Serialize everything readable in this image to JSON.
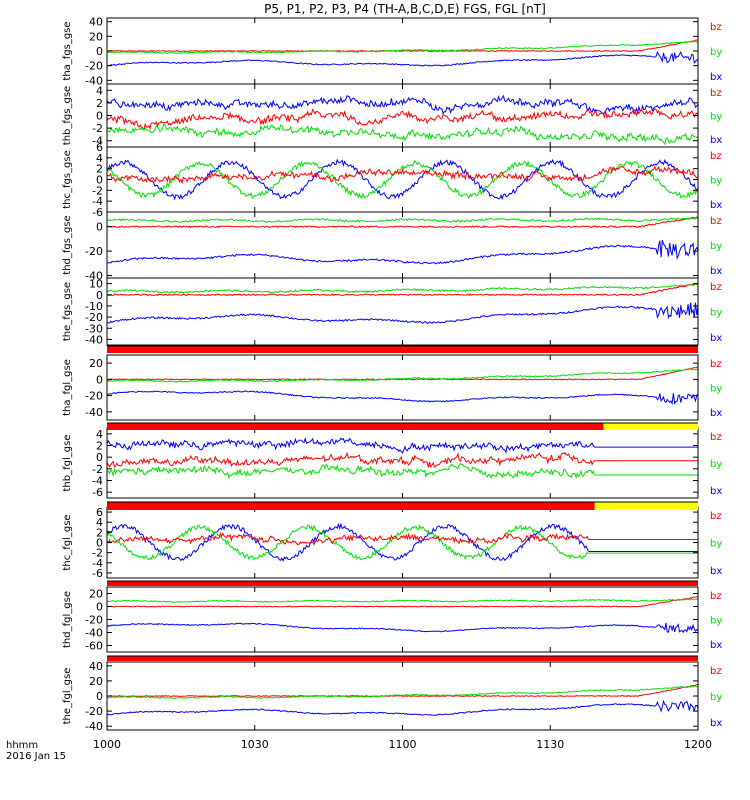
{
  "title": "P5, P1, P2, P3, P4 (TH-A,B,C,D,E) FGS, FGL [nT]",
  "time_label": "hhmm",
  "date_label": "2016 Jan 15",
  "colors": {
    "bx": "#0000ff",
    "by": "#00e000",
    "bz": "#ff0000",
    "bar_red": "#ff0000",
    "bar_yellow": "#ffff00",
    "axis": "#000000"
  },
  "chart_data": {
    "type": "line",
    "x_range": [
      "1000",
      "1200"
    ],
    "x_ticks": [
      "1000",
      "1030",
      "1100",
      "1130",
      "1200"
    ],
    "legend": [
      "bz",
      "by",
      "bx"
    ],
    "panels": [
      {
        "ylabel": "tha_fgs_gse",
        "ylim": [
          -45,
          45
        ],
        "yticks": [
          "40",
          "20",
          "0",
          "-20",
          "-40"
        ],
        "series": [
          {
            "name": "bz",
            "style": "flat",
            "level": 0,
            "end": 15
          },
          {
            "name": "by",
            "style": "rise",
            "level": -2,
            "end": 12
          },
          {
            "name": "bx",
            "style": "slow",
            "level": -20,
            "end": -10
          }
        ]
      },
      {
        "ylabel": "thb_fgs_gse",
        "ylim": [
          -5,
          5
        ],
        "yticks": [
          "4",
          "2",
          "0",
          "-2",
          "-4"
        ],
        "series": [
          {
            "name": "bx",
            "style": "busy",
            "level": 2.3,
            "end": 1
          },
          {
            "name": "bz",
            "style": "busy",
            "level": -1,
            "end": 0
          },
          {
            "name": "by",
            "style": "busy",
            "level": -2.5,
            "end": -3
          }
        ]
      },
      {
        "ylabel": "thc_fgs_gse",
        "ylim": [
          -6,
          6
        ],
        "yticks": [
          "6",
          "4",
          "2",
          "0",
          "-2",
          "-4",
          "-6"
        ],
        "series": [
          {
            "name": "bx",
            "style": "wave",
            "level": 0,
            "end": -2
          },
          {
            "name": "by",
            "style": "wave2",
            "level": 0,
            "end": 2
          },
          {
            "name": "bz",
            "style": "busy",
            "level": 0.5,
            "end": 1
          }
        ]
      },
      {
        "ylabel": "thd_fgs_gse",
        "ylim": [
          -42,
          12
        ],
        "yticks": [
          "0",
          "-20",
          "-40"
        ],
        "series": [
          {
            "name": "bz",
            "style": "flat",
            "level": 0,
            "end": 8
          },
          {
            "name": "by",
            "style": "rise",
            "level": 5,
            "end": 6
          },
          {
            "name": "bx",
            "style": "slow",
            "level": -30,
            "end": -20
          }
        ]
      },
      {
        "ylabel": "the_fgs_gse",
        "ylim": [
          -45,
          15
        ],
        "yticks": [
          "10",
          "0",
          "-10",
          "-20",
          "-30",
          "-40"
        ],
        "series": [
          {
            "name": "bz",
            "style": "flat",
            "level": 0,
            "end": 10
          },
          {
            "name": "by",
            "style": "rise",
            "level": 3,
            "end": 8
          },
          {
            "name": "bx",
            "style": "slow",
            "level": -25,
            "end": -15
          }
        ]
      },
      {
        "ylabel": "tha_fgl_gse",
        "ylim": [
          -50,
          30
        ],
        "yticks": [
          "20",
          "0",
          "-20",
          "-40"
        ],
        "series": [
          {
            "name": "bz",
            "style": "flat",
            "level": 0,
            "end": 15
          },
          {
            "name": "by",
            "style": "rise",
            "level": -2,
            "end": 12
          },
          {
            "name": "bx",
            "style": "slow",
            "level": -18,
            "end": -25
          }
        ]
      },
      {
        "ylabel": "thb_fgl_gse",
        "ylim": [
          -7,
          5
        ],
        "yticks": [
          "4",
          "2",
          "0",
          "-2",
          "-4",
          "-6"
        ],
        "series": [
          {
            "name": "bx",
            "style": "busy",
            "level": 2.3,
            "end": 2.3,
            "stop": 0.825
          },
          {
            "name": "bz",
            "style": "busy",
            "level": -1,
            "end": 0,
            "stop": 0.825
          },
          {
            "name": "by",
            "style": "busy",
            "level": -2.5,
            "end": -3,
            "stop": 0.825
          }
        ]
      },
      {
        "ylabel": "thc_fgl_gse",
        "ylim": [
          -7,
          7
        ],
        "yticks": [
          "6",
          "4",
          "2",
          "0",
          "-2",
          "-4",
          "-6"
        ],
        "series": [
          {
            "name": "bx",
            "style": "wave",
            "level": 0,
            "end": -2,
            "stop": 0.815
          },
          {
            "name": "by",
            "style": "wave2",
            "level": 0,
            "end": 2,
            "stop": 0.815
          },
          {
            "name": "bz",
            "style": "busy",
            "level": 0.5,
            "end": 1,
            "stop": 0.815
          }
        ]
      },
      {
        "ylabel": "thd_fgl_gse",
        "ylim": [
          -70,
          30
        ],
        "yticks": [
          "20",
          "0",
          "-20",
          "-40",
          "-60"
        ],
        "series": [
          {
            "name": "bz",
            "style": "flat",
            "level": 0,
            "end": 15
          },
          {
            "name": "by",
            "style": "rise",
            "level": 8,
            "end": 10
          },
          {
            "name": "bx",
            "style": "slow",
            "level": -30,
            "end": -35
          }
        ]
      },
      {
        "ylabel": "the_fgl_gse",
        "ylim": [
          -45,
          45
        ],
        "yticks": [
          "40",
          "20",
          "0",
          "-20",
          "-40"
        ],
        "series": [
          {
            "name": "bz",
            "style": "flat",
            "level": 0,
            "end": 15
          },
          {
            "name": "by",
            "style": "rise",
            "level": -2,
            "end": 12
          },
          {
            "name": "bx",
            "style": "slow",
            "level": -25,
            "end": -15
          }
        ]
      }
    ],
    "mode_bars": [
      {
        "after_panel": 4,
        "segments": [
          {
            "color": "red",
            "from": 0,
            "to": 1
          }
        ]
      },
      {
        "after_panel": 5,
        "segments": [
          {
            "color": "red",
            "from": 0,
            "to": 0.84
          },
          {
            "color": "yellow",
            "from": 0.84,
            "to": 1
          }
        ]
      },
      {
        "after_panel": 6,
        "segments": [
          {
            "color": "red",
            "from": 0,
            "to": 0.825
          },
          {
            "color": "yellow",
            "from": 0.825,
            "to": 1
          }
        ]
      },
      {
        "after_panel": 7,
        "segments": [
          {
            "color": "red",
            "from": 0,
            "to": 1
          }
        ]
      },
      {
        "after_panel": 8,
        "segments": [
          {
            "color": "red",
            "from": 0,
            "to": 1
          }
        ]
      }
    ]
  }
}
